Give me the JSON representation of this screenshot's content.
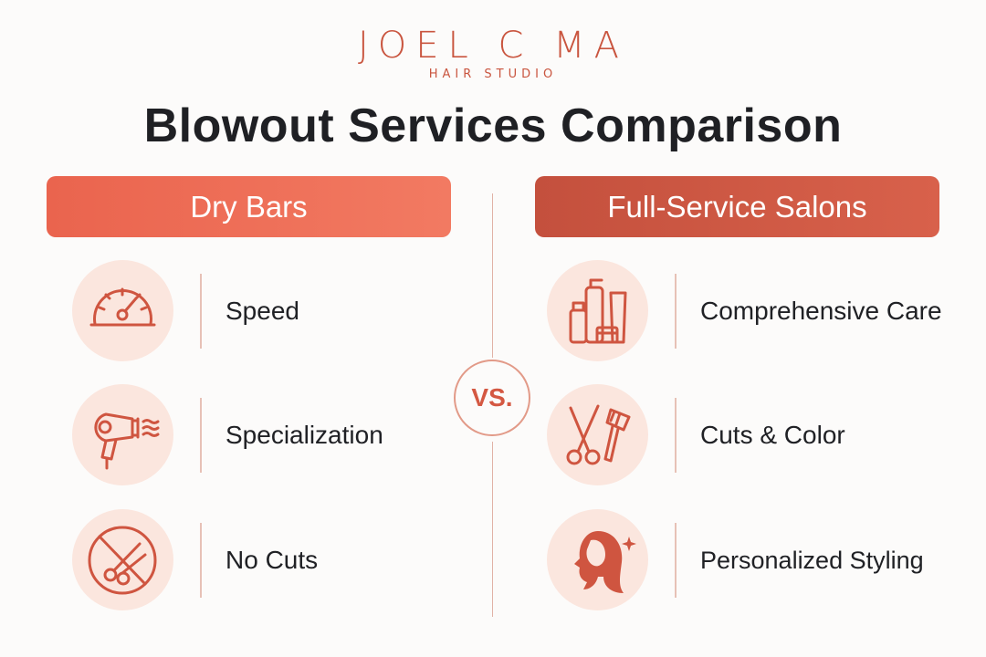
{
  "brand": {
    "name": "JOEL C MA",
    "subtitle": "HAIR STUDIO"
  },
  "title": "Blowout Services Comparison",
  "divider_badge": "VS.",
  "columns": {
    "left": {
      "header": "Dry Bars",
      "items": [
        {
          "label": "Speed",
          "icon": "speedometer-icon"
        },
        {
          "label": "Specialization",
          "icon": "hair-dryer-icon"
        },
        {
          "label": "No Cuts",
          "icon": "no-scissors-icon"
        }
      ]
    },
    "right": {
      "header": "Full-Service Salons",
      "items": [
        {
          "label": "Comprehensive Care",
          "icon": "hair-products-icon"
        },
        {
          "label": "Cuts & Color",
          "icon": "scissors-brush-icon"
        },
        {
          "label": "Personalized Styling",
          "icon": "woman-profile-icon"
        }
      ]
    }
  },
  "colors": {
    "accent": "#d45842",
    "header_left": "#ee6e57",
    "header_right": "#cd5843",
    "icon_bg": "#fbe6de"
  }
}
